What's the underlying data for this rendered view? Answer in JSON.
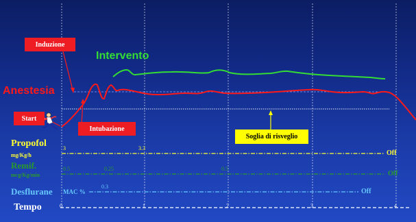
{
  "labels": {
    "induzione": "Induzione",
    "intervento": "Intervento",
    "anestesia": "Anestesia",
    "start": "Start",
    "intubazione": "Intubazione",
    "soglia": "Soglia di risveglio",
    "propofol": "Propofol",
    "propofol_unit": "mg/Kg/h",
    "remif": "Remif.",
    "remif_unit": "mcg/Kg/min",
    "desflurane": "Desflurane",
    "desflurane_unit": "MAC %",
    "tempo": "Tempo"
  },
  "doses": {
    "propofol": [
      "3",
      "3.3"
    ],
    "remif": [
      "0.5",
      "0.25",
      "0.5"
    ],
    "desflurane": [
      "0.3"
    ],
    "off": "Off"
  },
  "time_ticks": [
    "0",
    "1",
    "2",
    "3",
    "4"
  ],
  "colors": {
    "background_top": "#0c1d63",
    "background_bottom": "#2249c4",
    "anestesia": "#ff1a1a",
    "intervento": "#33dd33",
    "propofol": "#ffff33",
    "remif": "#2a9a2a",
    "desflurane": "#66c8ff",
    "tempo": "#ffffff",
    "label_box_red": "#ee1d24",
    "label_box_yellow": "#ffff00"
  },
  "icons": [
    "runner-icon"
  ]
}
